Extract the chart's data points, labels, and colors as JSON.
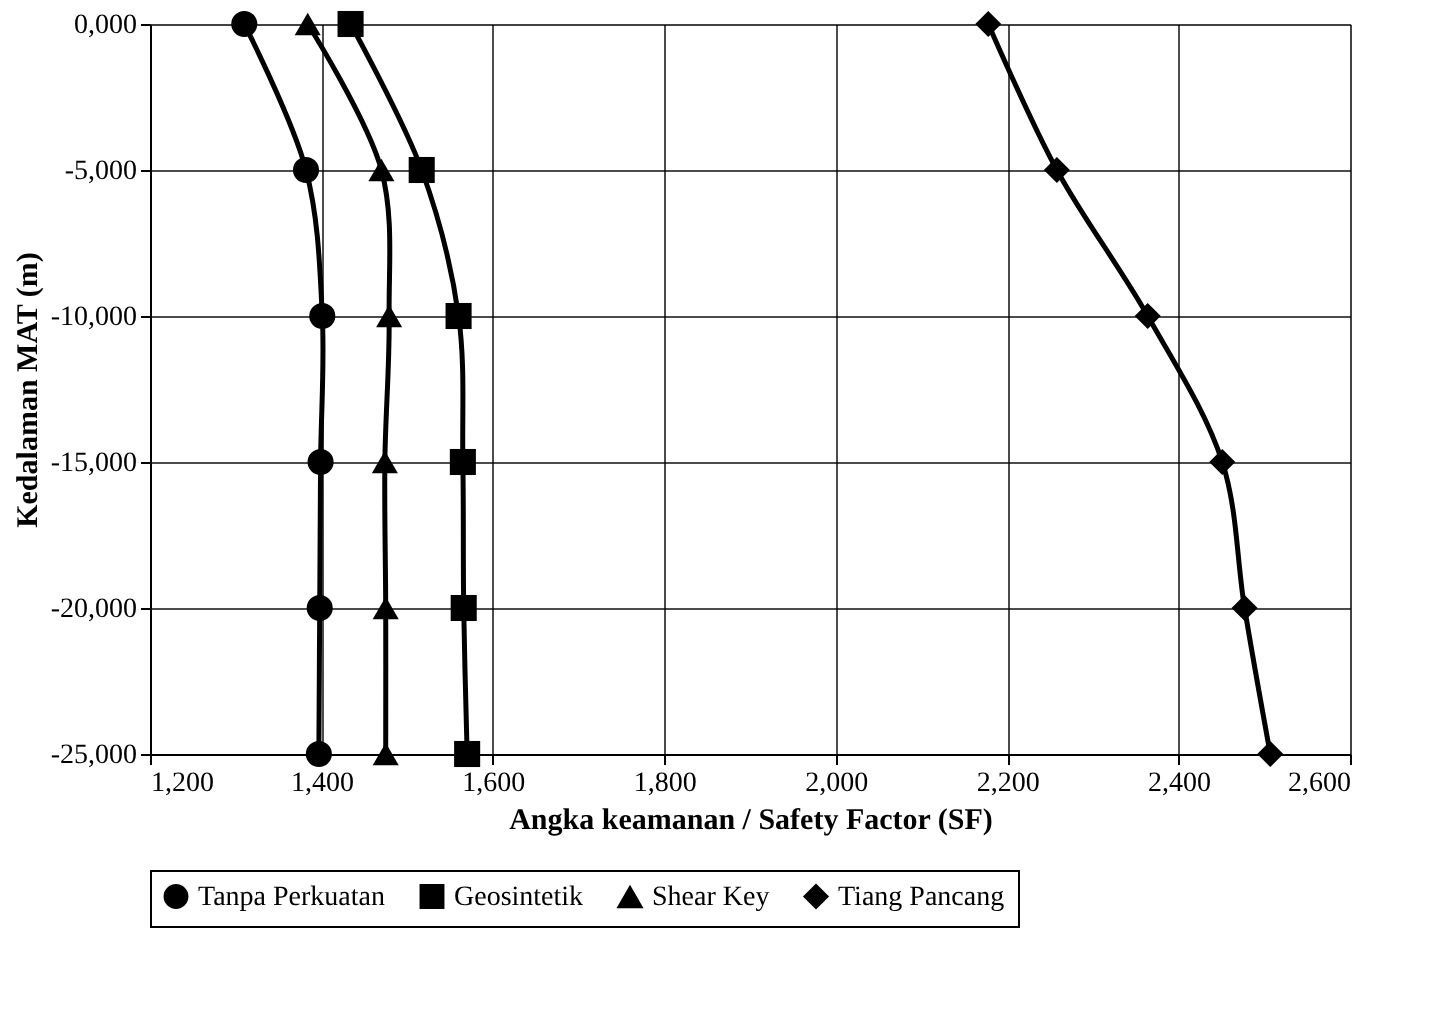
{
  "chart_data": {
    "type": "line",
    "xlabel": "Angka keamanan / Safety Factor (SF)",
    "ylabel": "Kedalaman MAT (m)",
    "xlim": [
      1200,
      2600
    ],
    "ylim": [
      -25000,
      0
    ],
    "xticks": [
      {
        "value": 1200,
        "label": "1,200"
      },
      {
        "value": 1400,
        "label": "1,400"
      },
      {
        "value": 1600,
        "label": "1,600"
      },
      {
        "value": 1800,
        "label": "1,800"
      },
      {
        "value": 2000,
        "label": "2,000"
      },
      {
        "value": 2200,
        "label": "2,200"
      },
      {
        "value": 2400,
        "label": "2,400"
      },
      {
        "value": 2600,
        "label": "2,600"
      }
    ],
    "yticks": [
      {
        "value": 0,
        "label": "0,000"
      },
      {
        "value": -5000,
        "label": "-5,000"
      },
      {
        "value": -10000,
        "label": "-10,000"
      },
      {
        "value": -15000,
        "label": "-15,000"
      },
      {
        "value": -20000,
        "label": "-20,000"
      },
      {
        "value": -25000,
        "label": "-25,000"
      }
    ],
    "grid": true,
    "legend": "bottom",
    "series": [
      {
        "name": "Tanpa Perkuatan",
        "color": "#000000",
        "marker": "circle",
        "x": [
          1310,
          1382,
          1401,
          1399,
          1398,
          1397
        ],
        "values": [
          0,
          -5000,
          -10000,
          -15000,
          -20000,
          -25000
        ]
      },
      {
        "name": "Geosintetik",
        "color": "#000000",
        "marker": "square",
        "x": [
          1434,
          1517,
          1560,
          1565,
          1566,
          1570
        ],
        "values": [
          0,
          -5000,
          -10000,
          -15000,
          -20000,
          -25000
        ]
      },
      {
        "name": "Shear Key",
        "color": "#000000",
        "marker": "triangle",
        "x": [
          1384,
          1470,
          1479,
          1474,
          1475,
          1475
        ],
        "values": [
          0,
          -5000,
          -10000,
          -15000,
          -20000,
          -25000
        ]
      },
      {
        "name": "Tiang Pancang",
        "color": "#000000",
        "marker": "diamond",
        "x": [
          2178,
          2258,
          2364,
          2451,
          2477,
          2507
        ],
        "values": [
          0,
          -5000,
          -10000,
          -15000,
          -20000,
          -25000
        ]
      }
    ]
  }
}
